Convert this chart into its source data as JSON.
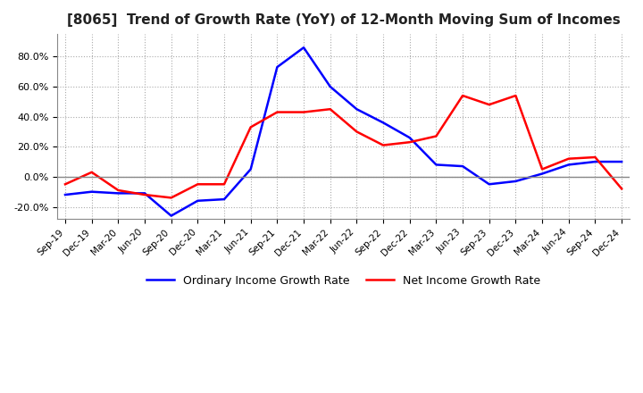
{
  "title": "[8065]  Trend of Growth Rate (YoY) of 12-Month Moving Sum of Incomes",
  "title_fontsize": 11,
  "ylim": [
    -28,
    95
  ],
  "yticks": [
    -20.0,
    0.0,
    20.0,
    40.0,
    60.0,
    80.0
  ],
  "background_color": "#ffffff",
  "grid_color": "#aaaaaa",
  "legend_labels": [
    "Ordinary Income Growth Rate",
    "Net Income Growth Rate"
  ],
  "line_colors": [
    "#0000ff",
    "#ff0000"
  ],
  "x_labels": [
    "Sep-19",
    "Dec-19",
    "Mar-20",
    "Jun-20",
    "Sep-20",
    "Dec-20",
    "Mar-21",
    "Jun-21",
    "Sep-21",
    "Dec-21",
    "Mar-22",
    "Jun-22",
    "Sep-22",
    "Dec-22",
    "Mar-23",
    "Jun-23",
    "Sep-23",
    "Dec-23",
    "Mar-24",
    "Jun-24",
    "Sep-24",
    "Dec-24"
  ],
  "ordinary_income": [
    -12.0,
    -10.0,
    -11.0,
    -11.0,
    -26.0,
    -16.0,
    -15.0,
    5.0,
    73.0,
    86.0,
    60.0,
    45.0,
    36.0,
    26.0,
    8.0,
    7.0,
    -5.0,
    -3.0,
    2.0,
    8.0,
    10.0,
    10.0
  ],
  "net_income": [
    -5.0,
    3.0,
    -9.0,
    -12.0,
    -14.0,
    -5.0,
    -5.0,
    33.0,
    43.0,
    43.0,
    45.0,
    30.0,
    21.0,
    23.0,
    27.0,
    54.0,
    48.0,
    54.0,
    5.0,
    12.0,
    13.0,
    -8.0
  ]
}
